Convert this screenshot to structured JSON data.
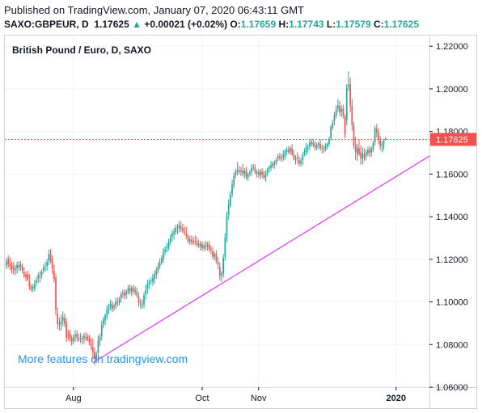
{
  "header": {
    "published": "Published on TradingView.com, January 07, 2020 06:43:11 GMT",
    "symbol": "SAXO:GBPEUR, D",
    "last": "1.17625",
    "up_arrow": "▲",
    "change": "+0.00021 (+0.02%)",
    "o_label": "O:",
    "o_value": "1.17659",
    "h_label": "H:",
    "h_value": "1.17743",
    "l_label": "L:",
    "l_value": "1.17579",
    "c_label": "C:",
    "c_value": "1.17625"
  },
  "colors": {
    "bull": "#26a69a",
    "bear": "#ef5350",
    "trendline": "#e040fb",
    "price_tag": "#ef5350",
    "promo": "#2196f3"
  },
  "chart_data": {
    "type": "candlestick",
    "title": "British Pound / Euro, D, SAXO",
    "promo_text": "More features on tradingview.com",
    "ylim": [
      1.06,
      1.225
    ],
    "y_ticks": [
      "1.22000",
      "1.20000",
      "1.18000",
      "1.16000",
      "1.14000",
      "1.12000",
      "1.10000",
      "1.08000",
      "1.06000"
    ],
    "y_tick_values": [
      1.22,
      1.2,
      1.18,
      1.16,
      1.14,
      1.12,
      1.1,
      1.08,
      1.06
    ],
    "x_ticks": [
      "Aug",
      "Oct",
      "Nov",
      "2020"
    ],
    "x_tick_index": [
      38,
      111,
      143,
      221
    ],
    "last_price": 1.17625,
    "last_price_label": "1.17625",
    "trendline": {
      "start": [
        51,
        1.0725
      ],
      "end": [
        240,
        1.1685
      ]
    },
    "candles_ohlc": [
      [
        1.1172,
        1.1207,
        1.1153,
        1.1189
      ],
      [
        1.1201,
        1.1219,
        1.1161,
        1.1177
      ],
      [
        1.1178,
        1.1209,
        1.1149,
        1.1169
      ],
      [
        1.117,
        1.1189,
        1.1133,
        1.1158
      ],
      [
        1.1161,
        1.1186,
        1.1129,
        1.1152
      ],
      [
        1.1148,
        1.1173,
        1.1126,
        1.1156
      ],
      [
        1.1157,
        1.1189,
        1.1133,
        1.1173
      ],
      [
        1.1173,
        1.1192,
        1.1144,
        1.1161
      ],
      [
        1.1163,
        1.1191,
        1.1146,
        1.1176
      ],
      [
        1.1167,
        1.1182,
        1.1135,
        1.1149
      ],
      [
        1.1142,
        1.1163,
        1.1111,
        1.1121
      ],
      [
        1.1128,
        1.1142,
        1.1097,
        1.1116
      ],
      [
        1.1129,
        1.1146,
        1.1097,
        1.1107
      ],
      [
        1.1095,
        1.1131,
        1.1056,
        1.1071
      ],
      [
        1.1068,
        1.1082,
        1.1049,
        1.1063
      ],
      [
        1.1061,
        1.1084,
        1.1045,
        1.1071
      ],
      [
        1.1062,
        1.1101,
        1.105,
        1.1083
      ],
      [
        1.109,
        1.1116,
        1.1075,
        1.1101
      ],
      [
        1.111,
        1.1138,
        1.1087,
        1.1124
      ],
      [
        1.1118,
        1.1144,
        1.1092,
        1.1123
      ],
      [
        1.1127,
        1.1153,
        1.1109,
        1.1142
      ],
      [
        1.1149,
        1.1175,
        1.1133,
        1.1161
      ],
      [
        1.1161,
        1.1188,
        1.1142,
        1.1164
      ],
      [
        1.1169,
        1.1201,
        1.1146,
        1.1187
      ],
      [
        1.1192,
        1.1245,
        1.1173,
        1.1223
      ],
      [
        1.1225,
        1.1248,
        1.1182,
        1.1197
      ],
      [
        1.12,
        1.1219,
        1.1132,
        1.1158
      ],
      [
        1.1146,
        1.1175,
        1.1091,
        1.1108
      ],
      [
        1.1115,
        1.1132,
        1.0937,
        1.0962
      ],
      [
        1.0943,
        1.0973,
        1.0873,
        1.0897
      ],
      [
        1.0892,
        1.0926,
        1.0865,
        1.0903
      ],
      [
        1.0898,
        1.094,
        1.0866,
        1.0909
      ],
      [
        1.0911,
        1.0956,
        1.0885,
        1.093
      ],
      [
        1.0925,
        1.0946,
        1.0882,
        1.0899
      ],
      [
        1.0903,
        1.0922,
        1.0812,
        1.0831
      ],
      [
        1.0844,
        1.0868,
        1.0818,
        1.0842
      ],
      [
        1.0853,
        1.0869,
        1.0815,
        1.0831
      ],
      [
        1.0829,
        1.0844,
        1.0795,
        1.0812
      ],
      [
        1.0817,
        1.0847,
        1.0802,
        1.0834
      ],
      [
        1.0837,
        1.0867,
        1.0814,
        1.0845
      ],
      [
        1.0851,
        1.0867,
        1.0814,
        1.0831
      ],
      [
        1.083,
        1.0851,
        1.0813,
        1.0826
      ],
      [
        1.0825,
        1.0854,
        1.0807,
        1.0832
      ],
      [
        1.0828,
        1.0843,
        1.08,
        1.0825
      ],
      [
        1.0827,
        1.0855,
        1.0805,
        1.0842
      ],
      [
        1.0835,
        1.0858,
        1.0816,
        1.0833
      ],
      [
        1.0837,
        1.085,
        1.0816,
        1.0822
      ],
      [
        1.0822,
        1.0845,
        1.0796,
        1.081
      ],
      [
        1.0802,
        1.0832,
        1.0776,
        1.0796
      ],
      [
        1.0787,
        1.0827,
        1.0732,
        1.0765
      ],
      [
        1.0765,
        1.0784,
        1.0704,
        1.0731
      ],
      [
        1.0732,
        1.0768,
        1.0714,
        1.0755
      ],
      [
        1.0761,
        1.0842,
        1.0734,
        1.0817
      ],
      [
        1.0815,
        1.0852,
        1.0792,
        1.0837
      ],
      [
        1.0839,
        1.0911,
        1.0819,
        1.0892
      ],
      [
        1.0893,
        1.0931,
        1.0876,
        1.0918
      ],
      [
        1.0913,
        1.0946,
        1.0891,
        1.0936
      ],
      [
        1.0935,
        1.0983,
        1.0917,
        1.0965
      ],
      [
        1.0968,
        1.0992,
        1.0945,
        1.0973
      ],
      [
        1.0974,
        1.1011,
        1.096,
        1.0992
      ],
      [
        1.0987,
        1.1004,
        1.0953,
        1.0967
      ],
      [
        1.0974,
        1.0993,
        1.0958,
        1.0981
      ],
      [
        1.0982,
        1.1021,
        1.0965,
        1.1002
      ],
      [
        1.0997,
        1.102,
        1.0979,
        1.0994
      ],
      [
        1.0996,
        1.1024,
        1.0983,
        1.1015
      ],
      [
        1.1016,
        1.1047,
        1.0996,
        1.1036
      ],
      [
        1.1041,
        1.1057,
        1.1019,
        1.1035
      ],
      [
        1.1042,
        1.1059,
        1.1011,
        1.1029
      ],
      [
        1.1035,
        1.1058,
        1.1015,
        1.1048
      ],
      [
        1.105,
        1.1079,
        1.1036,
        1.1064
      ],
      [
        1.1064,
        1.1082,
        1.1035,
        1.105
      ],
      [
        1.1046,
        1.1076,
        1.1026,
        1.1066
      ],
      [
        1.1065,
        1.1081,
        1.1037,
        1.1053
      ],
      [
        1.1046,
        1.1073,
        1.1031,
        1.1055
      ],
      [
        1.105,
        1.1068,
        1.1019,
        1.103
      ],
      [
        1.1026,
        1.1044,
        1.0978,
        1.0995
      ],
      [
        1.0995,
        1.1015,
        1.097,
        1.0989
      ],
      [
        1.0988,
        1.1011,
        1.0967,
        1.0989
      ],
      [
        1.0988,
        1.1045,
        1.0971,
        1.1032
      ],
      [
        1.1036,
        1.1079,
        1.1011,
        1.1055
      ],
      [
        1.1061,
        1.1104,
        1.1038,
        1.1085
      ],
      [
        1.1087,
        1.1106,
        1.1062,
        1.1093
      ],
      [
        1.1099,
        1.1115,
        1.1081,
        1.11
      ],
      [
        1.1095,
        1.1132,
        1.1075,
        1.1113
      ],
      [
        1.1109,
        1.1148,
        1.1085,
        1.1128
      ],
      [
        1.1126,
        1.1163,
        1.1108,
        1.1147
      ],
      [
        1.1145,
        1.1186,
        1.1133,
        1.117
      ],
      [
        1.1169,
        1.1204,
        1.1154,
        1.1186
      ],
      [
        1.1184,
        1.1218,
        1.1174,
        1.1205
      ],
      [
        1.1201,
        1.1253,
        1.1183,
        1.1234
      ],
      [
        1.1234,
        1.1261,
        1.122,
        1.1247
      ],
      [
        1.1253,
        1.1277,
        1.1232,
        1.1258
      ],
      [
        1.1254,
        1.1296,
        1.1242,
        1.1281
      ],
      [
        1.1279,
        1.1319,
        1.1266,
        1.1301
      ],
      [
        1.1306,
        1.1336,
        1.1284,
        1.1321
      ],
      [
        1.1317,
        1.1347,
        1.1292,
        1.1331
      ],
      [
        1.1329,
        1.1362,
        1.1314,
        1.1348
      ],
      [
        1.1348,
        1.1366,
        1.1318,
        1.1352
      ],
      [
        1.1345,
        1.1381,
        1.1326,
        1.1361
      ],
      [
        1.1352,
        1.1377,
        1.1327,
        1.1343
      ],
      [
        1.1345,
        1.1366,
        1.1322,
        1.1331
      ],
      [
        1.133,
        1.1354,
        1.1313,
        1.1328
      ],
      [
        1.1322,
        1.1352,
        1.1295,
        1.1309
      ],
      [
        1.1301,
        1.1315,
        1.1275,
        1.1286
      ],
      [
        1.1283,
        1.1311,
        1.1267,
        1.1294
      ],
      [
        1.1293,
        1.1312,
        1.1267,
        1.1281
      ],
      [
        1.1286,
        1.1306,
        1.1268,
        1.128
      ],
      [
        1.1287,
        1.1313,
        1.1265,
        1.1285
      ],
      [
        1.1284,
        1.1306,
        1.1257,
        1.1268
      ],
      [
        1.1273,
        1.1293,
        1.1253,
        1.1265
      ],
      [
        1.1259,
        1.1287,
        1.1241,
        1.1273
      ],
      [
        1.1271,
        1.1285,
        1.1239,
        1.1251
      ],
      [
        1.125,
        1.1278,
        1.1238,
        1.1263
      ],
      [
        1.1265,
        1.1286,
        1.1243,
        1.1258
      ],
      [
        1.126,
        1.1282,
        1.1241,
        1.1269
      ],
      [
        1.1269,
        1.1285,
        1.1235,
        1.1246
      ],
      [
        1.1247,
        1.1265,
        1.1223,
        1.1243
      ],
      [
        1.1239,
        1.1259,
        1.1201,
        1.1212
      ],
      [
        1.1212,
        1.1238,
        1.1196,
        1.1226
      ],
      [
        1.1228,
        1.1243,
        1.1181,
        1.1191
      ],
      [
        1.1189,
        1.1211,
        1.1155,
        1.1175
      ],
      [
        1.1164,
        1.1185,
        1.1102,
        1.1124
      ],
      [
        1.1121,
        1.1144,
        1.1095,
        1.1133
      ],
      [
        1.1133,
        1.1225,
        1.1114,
        1.1207
      ],
      [
        1.1212,
        1.1322,
        1.1194,
        1.1302
      ],
      [
        1.1304,
        1.1423,
        1.1281,
        1.1401
      ],
      [
        1.1409,
        1.1482,
        1.1386,
        1.1456
      ],
      [
        1.1453,
        1.1519,
        1.1443,
        1.1502
      ],
      [
        1.1506,
        1.1572,
        1.149,
        1.155
      ],
      [
        1.1546,
        1.1607,
        1.1532,
        1.1592
      ],
      [
        1.1596,
        1.1625,
        1.1579,
        1.1613
      ],
      [
        1.1609,
        1.1657,
        1.1593,
        1.1618
      ],
      [
        1.162,
        1.1639,
        1.16,
        1.1609
      ],
      [
        1.161,
        1.1634,
        1.159,
        1.1614
      ],
      [
        1.1616,
        1.1648,
        1.1589,
        1.1604
      ],
      [
        1.16,
        1.1628,
        1.1579,
        1.1616
      ],
      [
        1.1617,
        1.1634,
        1.1574,
        1.1588
      ],
      [
        1.1584,
        1.1607,
        1.1569,
        1.1599
      ],
      [
        1.1602,
        1.1619,
        1.1588,
        1.1608
      ],
      [
        1.1609,
        1.1645,
        1.159,
        1.1628
      ],
      [
        1.163,
        1.1648,
        1.1616,
        1.1635
      ],
      [
        1.1631,
        1.1646,
        1.1598,
        1.1607
      ],
      [
        1.1603,
        1.162,
        1.1584,
        1.1609
      ],
      [
        1.1609,
        1.1623,
        1.1583,
        1.1597
      ],
      [
        1.1594,
        1.1623,
        1.1575,
        1.1614
      ],
      [
        1.161,
        1.1628,
        1.1582,
        1.1598
      ],
      [
        1.1595,
        1.1616,
        1.1574,
        1.1583
      ],
      [
        1.1585,
        1.1616,
        1.1565,
        1.16
      ],
      [
        1.1602,
        1.1629,
        1.1588,
        1.1621
      ],
      [
        1.1624,
        1.1641,
        1.1606,
        1.1633
      ],
      [
        1.1629,
        1.1662,
        1.1614,
        1.1641
      ],
      [
        1.1638,
        1.1659,
        1.1627,
        1.1647
      ],
      [
        1.1645,
        1.1664,
        1.1625,
        1.1656
      ],
      [
        1.1653,
        1.1676,
        1.1641,
        1.1667
      ],
      [
        1.1672,
        1.1694,
        1.166,
        1.1683
      ],
      [
        1.1685,
        1.17,
        1.1663,
        1.1676
      ],
      [
        1.1675,
        1.1695,
        1.1657,
        1.1671
      ],
      [
        1.1679,
        1.1711,
        1.1662,
        1.1689
      ],
      [
        1.1684,
        1.1717,
        1.1669,
        1.1707
      ],
      [
        1.1704,
        1.1728,
        1.169,
        1.1715
      ],
      [
        1.1713,
        1.1731,
        1.1694,
        1.1703
      ],
      [
        1.1706,
        1.1731,
        1.169,
        1.1721
      ],
      [
        1.1721,
        1.1741,
        1.1685,
        1.1693
      ],
      [
        1.1692,
        1.1713,
        1.1664,
        1.1672
      ],
      [
        1.1668,
        1.1688,
        1.1645,
        1.1676
      ],
      [
        1.1677,
        1.1702,
        1.1649,
        1.1673
      ],
      [
        1.1667,
        1.1687,
        1.1635,
        1.1648
      ],
      [
        1.1648,
        1.1678,
        1.1636,
        1.1663
      ],
      [
        1.1667,
        1.1702,
        1.1641,
        1.1691
      ],
      [
        1.1694,
        1.1721,
        1.1684,
        1.1708
      ],
      [
        1.1704,
        1.1745,
        1.1687,
        1.1727
      ],
      [
        1.1723,
        1.1738,
        1.1698,
        1.1725
      ],
      [
        1.1729,
        1.1762,
        1.1711,
        1.1748
      ],
      [
        1.1743,
        1.1765,
        1.1728,
        1.1751
      ],
      [
        1.1749,
        1.1764,
        1.1724,
        1.1736
      ],
      [
        1.1739,
        1.1754,
        1.171,
        1.1728
      ],
      [
        1.1722,
        1.1748,
        1.1711,
        1.1735
      ],
      [
        1.1737,
        1.1751,
        1.172,
        1.1744
      ],
      [
        1.1741,
        1.1764,
        1.171,
        1.1719
      ],
      [
        1.1722,
        1.1738,
        1.1697,
        1.1725
      ],
      [
        1.1721,
        1.1737,
        1.1701,
        1.1716
      ],
      [
        1.172,
        1.1745,
        1.1707,
        1.1731
      ],
      [
        1.1728,
        1.175,
        1.1716,
        1.1742
      ],
      [
        1.1742,
        1.1775,
        1.1729,
        1.1766
      ],
      [
        1.1768,
        1.183,
        1.1756,
        1.1821
      ],
      [
        1.1818,
        1.1856,
        1.1806,
        1.1842
      ],
      [
        1.1846,
        1.1892,
        1.1828,
        1.1878
      ],
      [
        1.1873,
        1.1923,
        1.1862,
        1.1903
      ],
      [
        1.1907,
        1.1952,
        1.189,
        1.1922
      ],
      [
        1.1918,
        1.1943,
        1.1873,
        1.1891
      ],
      [
        1.1893,
        1.1924,
        1.1867,
        1.1905
      ],
      [
        1.1908,
        1.1925,
        1.1861,
        1.1876
      ],
      [
        1.1869,
        1.188,
        1.1769,
        1.1789
      ],
      [
        1.1851,
        1.2023,
        1.1829,
        1.2005
      ],
      [
        1.2009,
        1.2082,
        1.1991,
        1.2018
      ],
      [
        1.2021,
        1.2052,
        1.1891,
        1.1922
      ],
      [
        1.1921,
        1.1953,
        1.1804,
        1.1831
      ],
      [
        1.1829,
        1.1845,
        1.1717,
        1.1734
      ],
      [
        1.1737,
        1.1775,
        1.1667,
        1.1704
      ],
      [
        1.1695,
        1.1742,
        1.1661,
        1.1725
      ],
      [
        1.1721,
        1.1764,
        1.1684,
        1.1694
      ],
      [
        1.1701,
        1.1734,
        1.1645,
        1.1672
      ],
      [
        1.1673,
        1.1725,
        1.1645,
        1.17
      ],
      [
        1.1691,
        1.1722,
        1.1661,
        1.1676
      ],
      [
        1.1686,
        1.1714,
        1.1666,
        1.1701
      ],
      [
        1.1697,
        1.1728,
        1.1684,
        1.1713
      ],
      [
        1.1715,
        1.1734,
        1.1679,
        1.1699
      ],
      [
        1.1701,
        1.1728,
        1.1682,
        1.1721
      ],
      [
        1.1716,
        1.1756,
        1.1702,
        1.1745
      ],
      [
        1.1749,
        1.1827,
        1.1733,
        1.1816
      ],
      [
        1.1811,
        1.1836,
        1.1771,
        1.1792
      ],
      [
        1.1796,
        1.1816,
        1.1739,
        1.1759
      ],
      [
        1.1758,
        1.1777,
        1.1713,
        1.1733
      ],
      [
        1.1731,
        1.1753,
        1.1701,
        1.1738
      ],
      [
        1.1739,
        1.1766,
        1.1713,
        1.1759
      ],
      [
        1.1765,
        1.1774,
        1.1758,
        1.1762
      ]
    ]
  }
}
